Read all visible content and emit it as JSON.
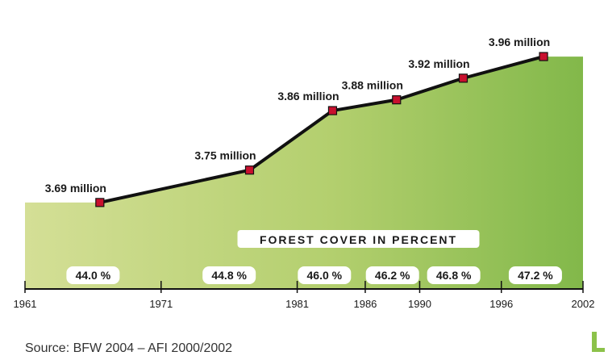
{
  "chart_data": {
    "type": "area",
    "x": [
      1966.5,
      1977.5,
      1983.6,
      1988.3,
      1993.2,
      1999.1
    ],
    "values": [
      3.69,
      3.75,
      3.86,
      3.88,
      3.92,
      3.96
    ],
    "value_labels": [
      "3.69 million",
      "3.75 million",
      "3.86 million",
      "3.88 million",
      "3.92 million",
      "3.96 million"
    ],
    "x_ticks": [
      1961,
      1971,
      1981,
      1986,
      1990,
      1996,
      2002
    ],
    "xlim": [
      1961,
      2002
    ],
    "ylim": [
      3.53,
      3.99
    ],
    "subtitle": "FOREST COVER IN PERCENT",
    "percent_labels": [
      "44.0 %",
      "44.8 %",
      "46.0 %",
      "46.2 %",
      "46.8 %",
      "47.2 %"
    ],
    "percent_centers": [
      1966,
      1976,
      1983,
      1988,
      1992.5,
      1998.5
    ],
    "grid": false,
    "legend": "none",
    "colors": {
      "line": "#111111",
      "marker": "#c8102e",
      "area_left": "#d4df96",
      "area_right": "#82b84a",
      "axis": "#111111"
    }
  },
  "source": "Source: BFW 2004 – AFI 2000/2002"
}
